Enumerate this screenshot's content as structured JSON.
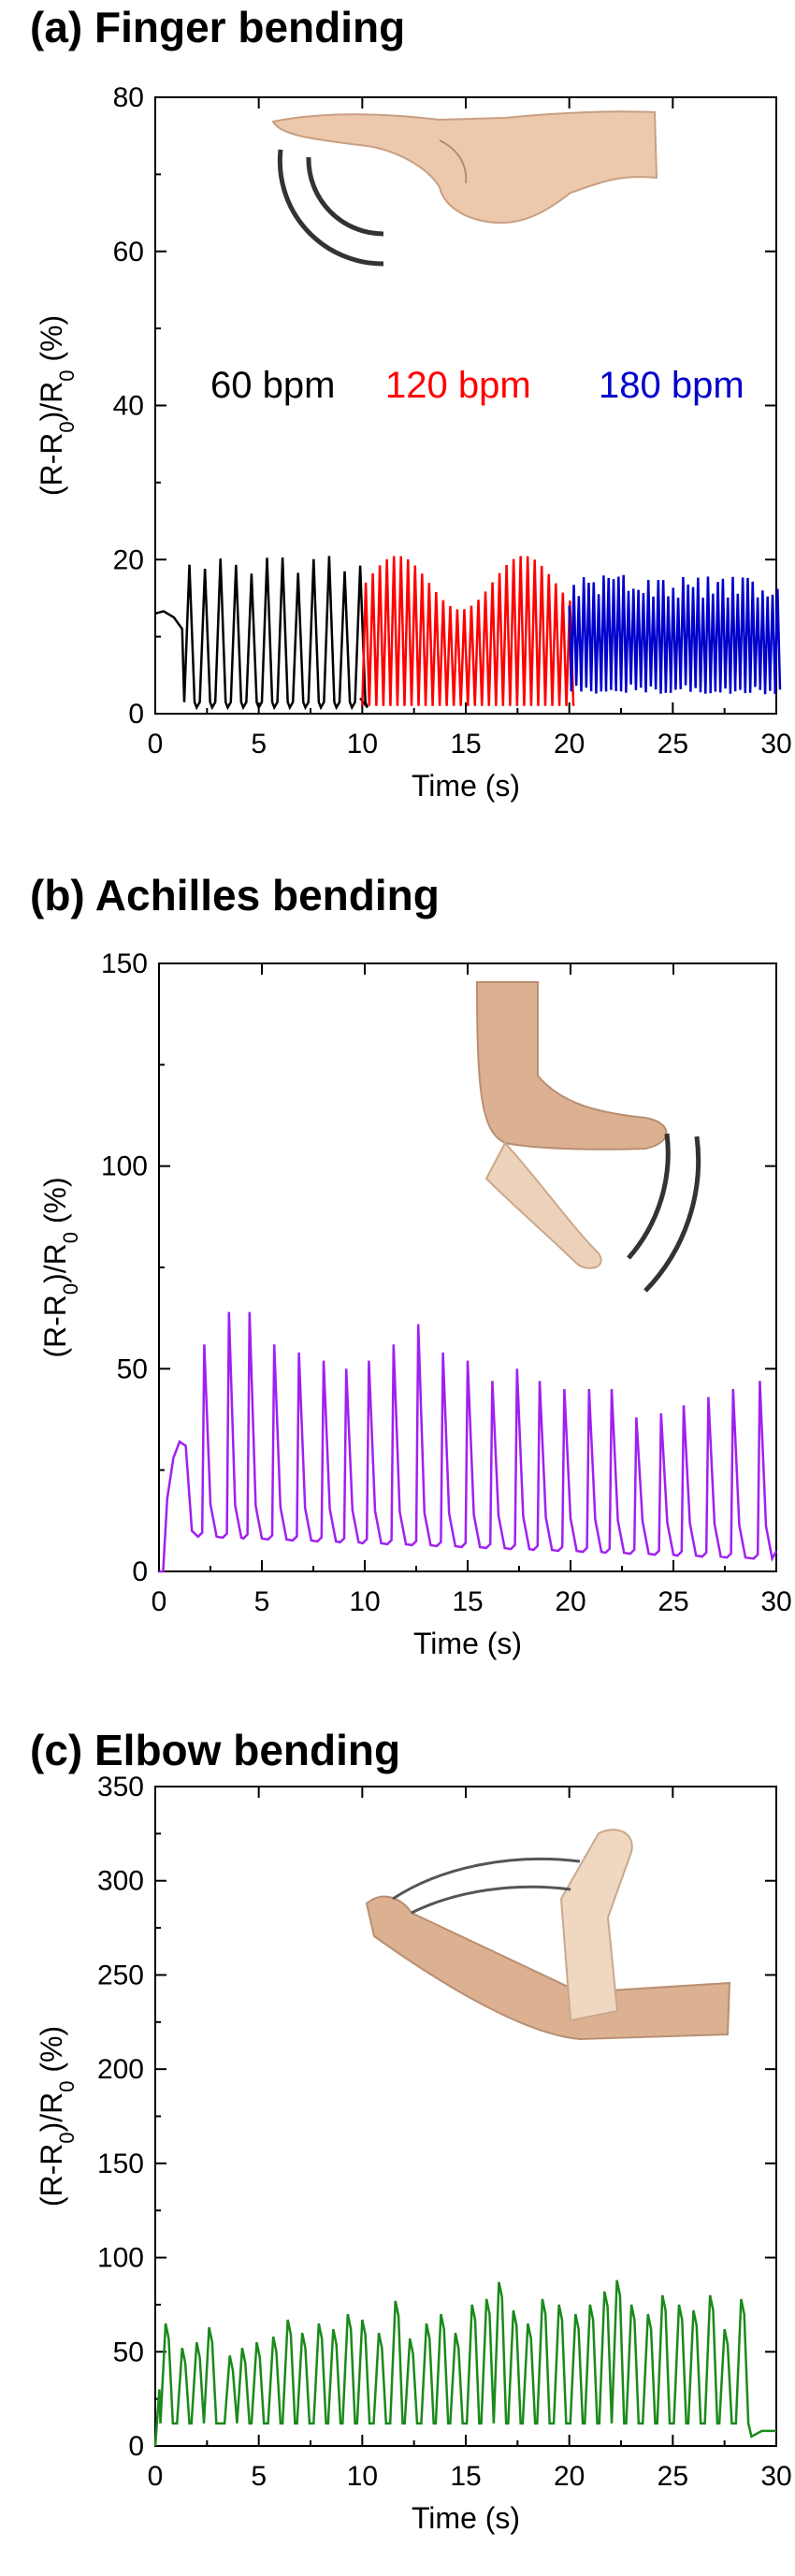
{
  "chart_data": [
    {
      "id": "a",
      "type": "line",
      "title": "(a) Finger bending",
      "xlabel": "Time (s)",
      "ylabel_base": "(R-R",
      "ylabel_sub": "0",
      "ylabel_mid": ")/R",
      "ylabel_tail": " (%)",
      "xlim": [
        0,
        30
      ],
      "ylim": [
        0,
        80
      ],
      "xticks": [
        "0",
        "5",
        "10",
        "15",
        "20",
        "25",
        "30"
      ],
      "yticks": [
        "0",
        "20",
        "40",
        "60",
        "80"
      ],
      "annotations": [
        "60 bpm",
        "120 bpm",
        "180 bpm"
      ],
      "colors": [
        "#000000",
        "#ff0000",
        "#0000cc"
      ],
      "series": [
        {
          "color": "#000000",
          "t_start": 0,
          "t_end": 10,
          "rate_bpm": 60,
          "peak": 19.5,
          "base": 1.5,
          "note": "initial plateau ~13 from 0 to 1.3 s, then cycles"
        },
        {
          "color": "#ff0000",
          "t_start": 10,
          "t_end": 20,
          "rate_bpm": 120,
          "peak": 19,
          "base": 1
        },
        {
          "color": "#0000cc",
          "t_start": 20,
          "t_end": 30,
          "rate_bpm": 180,
          "peak": 17,
          "base": 2.5
        }
      ],
      "icon": "finger-bending-icon"
    },
    {
      "id": "b",
      "type": "line",
      "title": "(b) Achilles bending",
      "xlabel": "Time (s)",
      "ylabel_base": "(R-R",
      "ylabel_sub": "0",
      "ylabel_mid": ")/R",
      "ylabel_tail": " (%)",
      "xlim": [
        0,
        30
      ],
      "ylim": [
        0,
        150
      ],
      "xticks": [
        "0",
        "5",
        "10",
        "15",
        "20",
        "25",
        "30"
      ],
      "yticks": [
        "0",
        "50",
        "100",
        "150"
      ],
      "colors": [
        "#a020f0"
      ],
      "series": [
        {
          "color": "#a020f0",
          "t_start": 0,
          "t_end": 30,
          "peaks": [
            [
              2.2,
              56
            ],
            [
              3.4,
              64
            ],
            [
              4.4,
              64
            ],
            [
              5.6,
              56
            ],
            [
              6.8,
              54
            ],
            [
              8.0,
              52
            ],
            [
              9.1,
              50
            ],
            [
              10.2,
              52
            ],
            [
              11.4,
              56
            ],
            [
              12.6,
              61
            ],
            [
              13.8,
              54
            ],
            [
              15.0,
              52
            ],
            [
              16.2,
              47
            ],
            [
              17.4,
              50
            ],
            [
              18.5,
              47
            ],
            [
              19.7,
              45
            ],
            [
              20.9,
              45
            ],
            [
              22.0,
              45
            ],
            [
              23.2,
              38
            ],
            [
              24.4,
              39
            ],
            [
              25.5,
              41
            ],
            [
              26.7,
              43
            ],
            [
              27.9,
              45
            ],
            [
              29.2,
              47
            ]
          ],
          "baseline_start": 9,
          "baseline_end": 3
        }
      ],
      "icon": "achilles-bending-icon"
    },
    {
      "id": "c",
      "type": "line",
      "title": "(c) Elbow bending",
      "xlabel": "Time (s)",
      "ylabel_base": "(R-R",
      "ylabel_sub": "0",
      "ylabel_mid": ")/R",
      "ylabel_tail": " (%)",
      "xlim": [
        0,
        30
      ],
      "ylim": [
        0,
        350
      ],
      "xticks": [
        "0",
        "5",
        "10",
        "15",
        "20",
        "25",
        "30"
      ],
      "yticks": [
        "0",
        "50",
        "100",
        "150",
        "200",
        "250",
        "300",
        "350"
      ],
      "colors": [
        "#1a8a1a"
      ],
      "series": [
        {
          "color": "#1a8a1a",
          "t_start": 0,
          "t_end": 30,
          "peaks": [
            [
              0.5,
              65
            ],
            [
              1.3,
              52
            ],
            [
              2.0,
              55
            ],
            [
              2.6,
              63
            ],
            [
              3.6,
              48
            ],
            [
              4.2,
              52
            ],
            [
              4.9,
              55
            ],
            [
              5.7,
              58
            ],
            [
              6.4,
              67
            ],
            [
              7.1,
              60
            ],
            [
              7.9,
              65
            ],
            [
              8.6,
              62
            ],
            [
              9.3,
              70
            ],
            [
              10.0,
              67
            ],
            [
              10.8,
              60
            ],
            [
              11.6,
              77
            ],
            [
              12.3,
              57
            ],
            [
              13.1,
              65
            ],
            [
              13.8,
              70
            ],
            [
              14.5,
              60
            ],
            [
              15.3,
              75
            ],
            [
              16.0,
              78
            ],
            [
              16.6,
              87
            ],
            [
              17.3,
              72
            ],
            [
              18.0,
              65
            ],
            [
              18.7,
              78
            ],
            [
              19.5,
              75
            ],
            [
              20.3,
              70
            ],
            [
              21.0,
              75
            ],
            [
              21.7,
              82
            ],
            [
              22.3,
              88
            ],
            [
              23.0,
              75
            ],
            [
              23.8,
              70
            ],
            [
              24.5,
              80
            ],
            [
              25.3,
              75
            ],
            [
              26.0,
              72
            ],
            [
              26.8,
              80
            ],
            [
              27.5,
              62
            ],
            [
              28.3,
              78
            ]
          ],
          "baseline": 12
        }
      ],
      "icon": "elbow-bending-icon"
    }
  ]
}
